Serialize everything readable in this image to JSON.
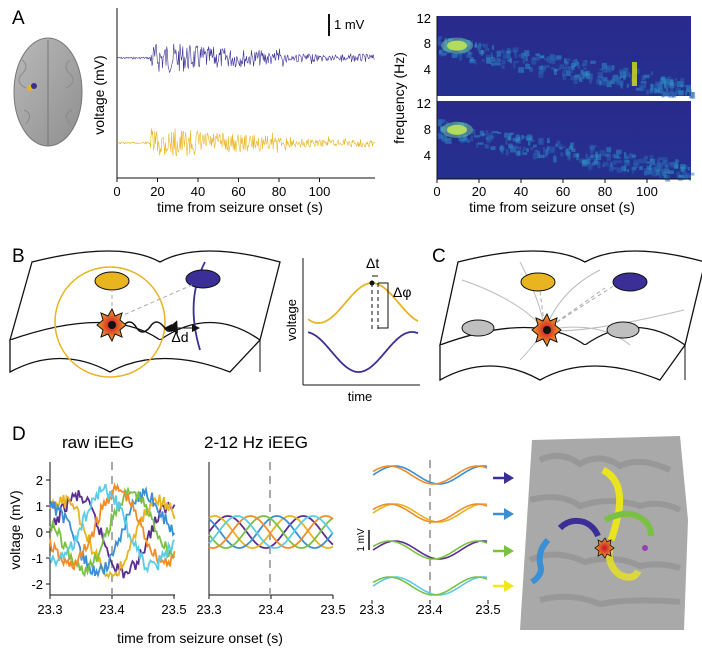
{
  "panels": {
    "a": "A",
    "b": "B",
    "c": "C",
    "d": "D"
  },
  "panel_a": {
    "scale_bar": "1 mV",
    "ylabel_voltage": "voltage (mV)",
    "xlabel": "time from seizure onset (s)",
    "xticks": [
      "0",
      "20",
      "40",
      "60",
      "80",
      "100"
    ],
    "spec_ylabel": "frequency (Hz)",
    "spec_yticks": [
      "12",
      "8",
      "4"
    ],
    "spec_xlabel": "time from seizure onset (s)",
    "spec_xticks": [
      "0",
      "20",
      "40",
      "60",
      "80",
      "100"
    ],
    "colors": {
      "purple": "#3b2f97",
      "yellow": "#e8b41f"
    }
  },
  "panel_b": {
    "delta_d": "Δd",
    "delta_t": "Δt",
    "delta_phi": "Δφ",
    "ylabel": "voltage",
    "xlabel": "time"
  },
  "panel_d": {
    "raw_title": "raw iEEG",
    "filt_title": "2-12 Hz iEEG",
    "ylabel": "voltage (mV)",
    "yticks": [
      "2",
      "1",
      "0",
      "-1",
      "-2"
    ],
    "xticks": [
      "23.3",
      "23.4",
      "23.5"
    ],
    "xlabel": "time from seizure onset (s)",
    "scale": "1 mV",
    "trace_colors": [
      "#5a2d91",
      "#e8b41f",
      "#3b8fd4",
      "#7ac143",
      "#f28c28",
      "#5ccbe8"
    ],
    "arrow_colors": [
      "#3b2f97",
      "#3b8fd4",
      "#7ac143",
      "#f2e61c"
    ]
  }
}
